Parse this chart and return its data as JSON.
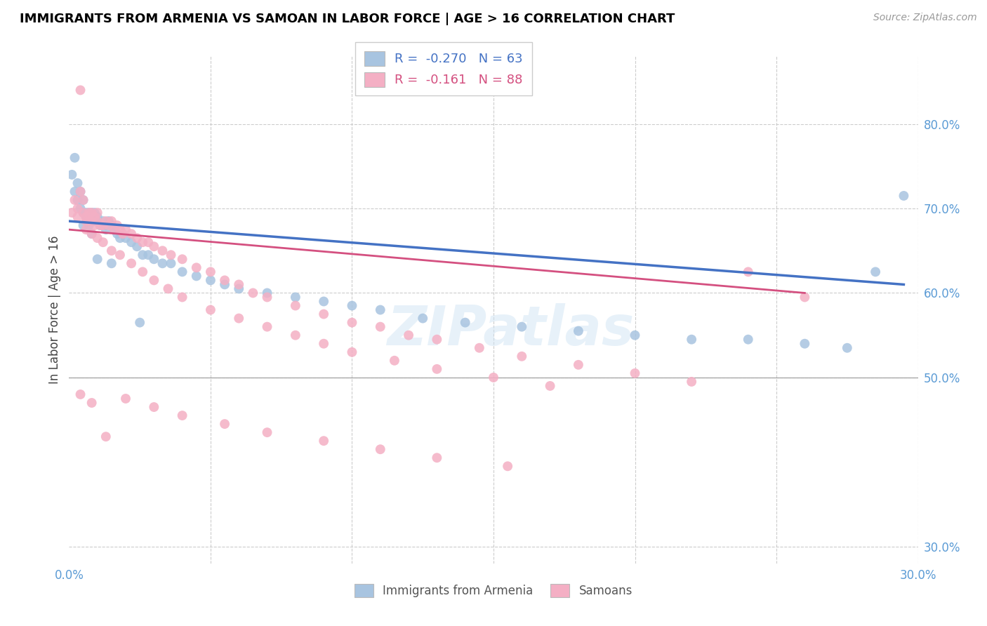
{
  "title": "IMMIGRANTS FROM ARMENIA VS SAMOAN IN LABOR FORCE | AGE > 16 CORRELATION CHART",
  "source": "Source: ZipAtlas.com",
  "ylabel": "In Labor Force | Age > 16",
  "armenia_R": "-0.270",
  "armenia_N": "63",
  "samoan_R": "-0.161",
  "samoan_N": "88",
  "armenia_color": "#a8c4e0",
  "armenia_line_color": "#4472c4",
  "samoan_color": "#f4afc4",
  "samoan_line_color": "#d45080",
  "background_color": "#ffffff",
  "grid_color": "#cccccc",
  "title_color": "#000000",
  "axis_label_color": "#5b9bd5",
  "watermark": "ZIPatlas",
  "xlim": [
    0.0,
    0.3
  ],
  "ylim": [
    0.28,
    0.88
  ],
  "y_tick_vals": [
    0.3,
    0.5,
    0.6,
    0.7,
    0.8
  ],
  "y_tick_labels": [
    "30.0%",
    "50.0%",
    "60.0%",
    "70.0%",
    "80.0%"
  ],
  "x_tick_vals": [
    0.0,
    0.05,
    0.1,
    0.15,
    0.2,
    0.25,
    0.3
  ],
  "x_tick_labels": [
    "0.0%",
    "",
    "",
    "",
    "",
    "",
    "30.0%"
  ],
  "armenia_x": [
    0.001,
    0.002,
    0.002,
    0.003,
    0.003,
    0.004,
    0.004,
    0.005,
    0.005,
    0.005,
    0.006,
    0.006,
    0.007,
    0.007,
    0.007,
    0.008,
    0.008,
    0.008,
    0.009,
    0.009,
    0.01,
    0.01,
    0.011,
    0.012,
    0.013,
    0.013,
    0.014,
    0.015,
    0.016,
    0.017,
    0.018,
    0.02,
    0.022,
    0.024,
    0.026,
    0.028,
    0.03,
    0.033,
    0.036,
    0.04,
    0.045,
    0.05,
    0.055,
    0.06,
    0.07,
    0.08,
    0.09,
    0.1,
    0.11,
    0.125,
    0.14,
    0.16,
    0.18,
    0.2,
    0.22,
    0.24,
    0.26,
    0.275,
    0.285,
    0.295,
    0.01,
    0.015,
    0.025
  ],
  "armenia_y": [
    0.74,
    0.76,
    0.72,
    0.73,
    0.71,
    0.72,
    0.7,
    0.71,
    0.695,
    0.68,
    0.695,
    0.69,
    0.695,
    0.685,
    0.68,
    0.695,
    0.685,
    0.67,
    0.695,
    0.685,
    0.69,
    0.685,
    0.68,
    0.685,
    0.68,
    0.675,
    0.685,
    0.68,
    0.675,
    0.67,
    0.665,
    0.665,
    0.66,
    0.655,
    0.645,
    0.645,
    0.64,
    0.635,
    0.635,
    0.625,
    0.62,
    0.615,
    0.61,
    0.605,
    0.6,
    0.595,
    0.59,
    0.585,
    0.58,
    0.57,
    0.565,
    0.56,
    0.555,
    0.55,
    0.545,
    0.545,
    0.54,
    0.535,
    0.625,
    0.715,
    0.64,
    0.635,
    0.565
  ],
  "samoan_x": [
    0.001,
    0.002,
    0.003,
    0.003,
    0.004,
    0.004,
    0.005,
    0.005,
    0.006,
    0.006,
    0.006,
    0.007,
    0.007,
    0.008,
    0.008,
    0.009,
    0.009,
    0.01,
    0.01,
    0.011,
    0.012,
    0.013,
    0.014,
    0.015,
    0.016,
    0.017,
    0.018,
    0.019,
    0.02,
    0.022,
    0.024,
    0.026,
    0.028,
    0.03,
    0.033,
    0.036,
    0.04,
    0.045,
    0.05,
    0.055,
    0.06,
    0.065,
    0.07,
    0.08,
    0.09,
    0.1,
    0.11,
    0.12,
    0.13,
    0.145,
    0.16,
    0.18,
    0.2,
    0.22,
    0.24,
    0.26,
    0.008,
    0.01,
    0.012,
    0.015,
    0.018,
    0.022,
    0.026,
    0.03,
    0.035,
    0.04,
    0.05,
    0.06,
    0.07,
    0.08,
    0.09,
    0.1,
    0.115,
    0.13,
    0.15,
    0.17,
    0.02,
    0.03,
    0.04,
    0.055,
    0.07,
    0.09,
    0.11,
    0.13,
    0.155,
    0.004,
    0.008,
    0.013
  ],
  "samoan_y": [
    0.695,
    0.71,
    0.7,
    0.69,
    0.84,
    0.72,
    0.71,
    0.695,
    0.69,
    0.685,
    0.675,
    0.695,
    0.685,
    0.695,
    0.685,
    0.69,
    0.68,
    0.695,
    0.685,
    0.68,
    0.68,
    0.685,
    0.68,
    0.685,
    0.675,
    0.68,
    0.675,
    0.67,
    0.675,
    0.67,
    0.665,
    0.66,
    0.66,
    0.655,
    0.65,
    0.645,
    0.64,
    0.63,
    0.625,
    0.615,
    0.61,
    0.6,
    0.595,
    0.585,
    0.575,
    0.565,
    0.56,
    0.55,
    0.545,
    0.535,
    0.525,
    0.515,
    0.505,
    0.495,
    0.625,
    0.595,
    0.67,
    0.665,
    0.66,
    0.65,
    0.645,
    0.635,
    0.625,
    0.615,
    0.605,
    0.595,
    0.58,
    0.57,
    0.56,
    0.55,
    0.54,
    0.53,
    0.52,
    0.51,
    0.5,
    0.49,
    0.475,
    0.465,
    0.455,
    0.445,
    0.435,
    0.425,
    0.415,
    0.405,
    0.395,
    0.48,
    0.47,
    0.43
  ],
  "hline_y": 0.5,
  "hline_color": "#cccccc"
}
